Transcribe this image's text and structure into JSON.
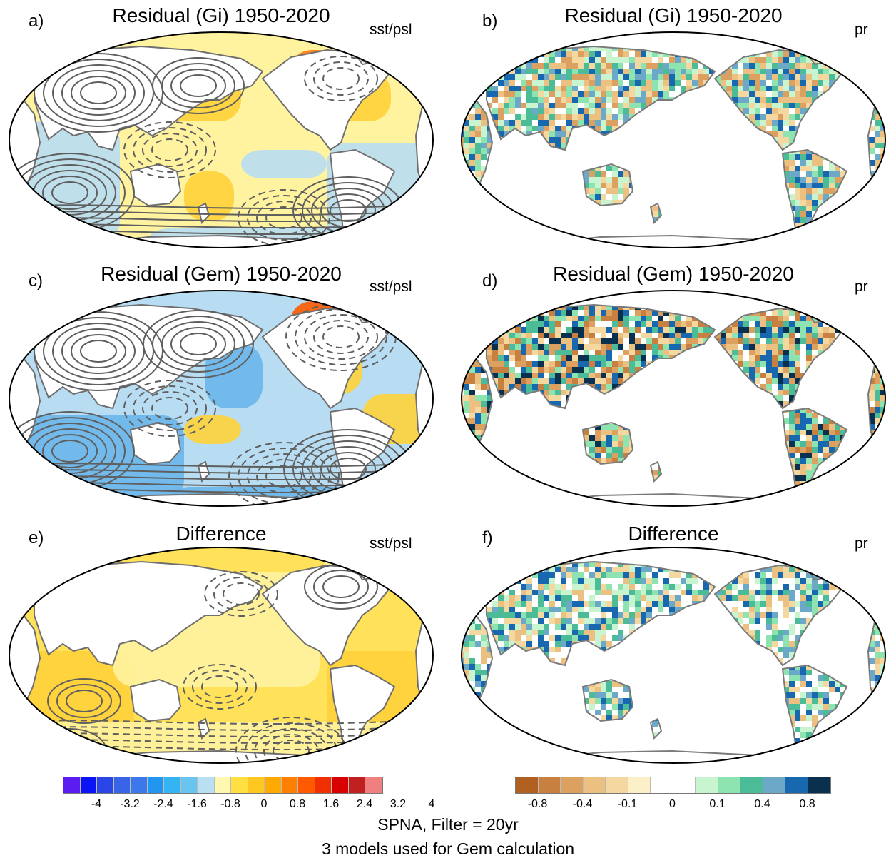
{
  "panels": [
    {
      "letter": "a)",
      "title": "Residual (Gi) 1950-2020",
      "var": "sst/psl",
      "kind": "sst",
      "shade": "gi"
    },
    {
      "letter": "b)",
      "title": "Residual (Gi) 1950-2020",
      "var": "pr",
      "kind": "pr",
      "shade": "gi"
    },
    {
      "letter": "c)",
      "title": "Residual (Gem) 1950-2020",
      "var": "sst/psl",
      "kind": "sst",
      "shade": "gem"
    },
    {
      "letter": "d)",
      "title": "Residual (Gem) 1950-2020",
      "var": "pr",
      "kind": "pr",
      "shade": "gem"
    },
    {
      "letter": "e)",
      "title": "Difference",
      "var": "sst/psl",
      "kind": "sst",
      "shade": "diff"
    },
    {
      "letter": "f)",
      "title": "Difference",
      "var": "pr",
      "kind": "pr",
      "shade": "diff"
    }
  ],
  "colorbars": {
    "sst": {
      "colors": [
        "#5a1cf0",
        "#0a14f5",
        "#2a46e6",
        "#3a64e8",
        "#3c78ea",
        "#2096f0",
        "#34b4f2",
        "#6ac4f0",
        "#b8dff2",
        "#fff8b0",
        "#ffe040",
        "#ffc820",
        "#ffaa00",
        "#ff8000",
        "#ff5a00",
        "#f03000",
        "#d80000",
        "#c02020",
        "#f08080"
      ],
      "ticks": [
        "-4",
        "-3.2",
        "-2.4",
        "-1.6",
        "-0.8",
        "0",
        "0.8",
        "1.6",
        "2.4",
        "3.2",
        "4"
      ]
    },
    "pr": {
      "colors": [
        "#b06020",
        "#c88040",
        "#dca060",
        "#ecc080",
        "#f4d8a0",
        "#fcf0c8",
        "#ffffff",
        "#ffffff",
        "#c8f4d0",
        "#8ee4b0",
        "#4cbc98",
        "#6ca8c8",
        "#1868b0",
        "#0a3050"
      ],
      "ticks": [
        "-0.8",
        "-0.4",
        "-0.1",
        "0",
        "0.1",
        "0.4",
        "0.8"
      ]
    }
  },
  "footer": {
    "line1": "SPNA, Filter = 20yr",
    "line2": "3 models used for Gem calculation"
  }
}
